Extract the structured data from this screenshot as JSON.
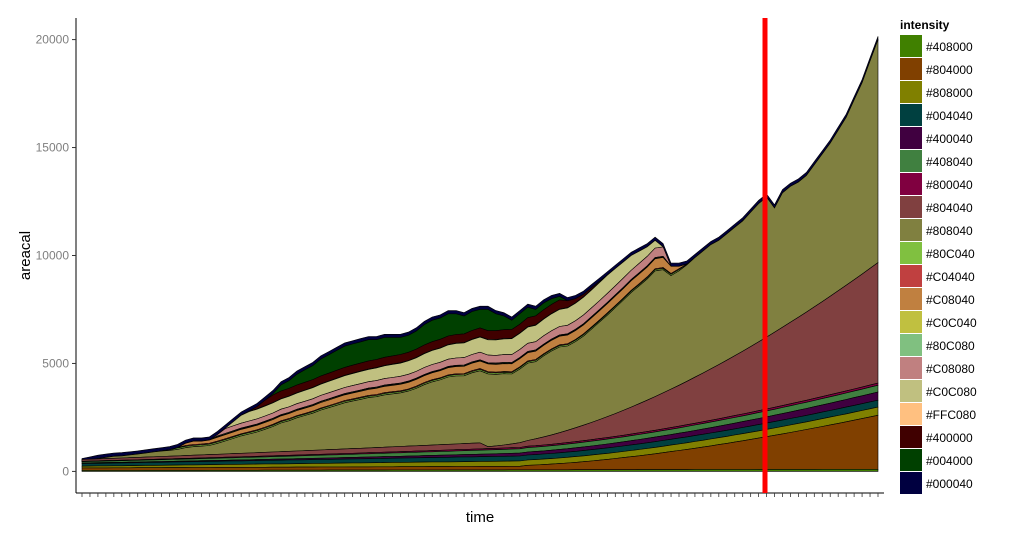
{
  "chart_data": {
    "type": "area",
    "stacked": true,
    "xlabel": "time",
    "ylabel": "areacal",
    "ylim": [
      -1000,
      21000
    ],
    "yticks": [
      0,
      5000,
      10000,
      15000,
      20000
    ],
    "ytick_labels": [
      "0",
      "5000",
      "10000",
      "15000",
      "20000"
    ],
    "n_time_points": 101,
    "grid": false,
    "legend": {
      "title": "intensity",
      "placement": "right",
      "entries": [
        "#408000",
        "#804000",
        "#808000",
        "#004040",
        "#400040",
        "#408040",
        "#800040",
        "#804040",
        "#808040",
        "#80C040",
        "#C04040",
        "#C08040",
        "#C0C040",
        "#80C080",
        "#C08080",
        "#C0C080",
        "#FFC080",
        "#400000",
        "#004000",
        "#000040"
      ]
    },
    "series": [
      {
        "name": "#000040",
        "color": "#000040",
        "values": [
          30,
          35,
          40,
          45,
          45,
          50,
          50,
          55,
          55,
          60,
          60,
          60,
          60,
          60,
          60,
          60,
          60,
          60,
          60,
          60,
          60,
          60,
          60,
          60,
          60,
          60,
          60,
          60,
          60,
          60,
          60,
          60,
          60,
          60,
          60,
          60,
          60,
          60,
          60,
          60,
          60,
          60,
          60,
          60,
          60,
          60,
          60,
          60,
          60,
          60,
          60,
          60,
          60,
          60,
          60,
          60,
          60,
          60,
          60,
          60,
          60,
          60,
          60,
          60,
          60,
          60,
          60,
          60,
          60,
          60,
          60,
          60,
          60,
          60,
          60,
          60,
          60,
          60,
          60,
          60,
          60,
          60,
          60,
          60,
          60,
          60,
          60,
          60,
          60,
          60,
          60,
          60,
          60,
          60,
          60,
          60,
          60,
          60,
          60,
          60,
          60
        ]
      },
      {
        "name": "#004000",
        "color": "#004000",
        "values": [
          0,
          0,
          0,
          0,
          0,
          0,
          0,
          0,
          0,
          0,
          0,
          0,
          0,
          0,
          0,
          0,
          0,
          0,
          0,
          0,
          0,
          0,
          0,
          0,
          0,
          0,
          0,
          0,
          0,
          0,
          0,
          0,
          0,
          0,
          0,
          0,
          0,
          0,
          0,
          0,
          0,
          0,
          0,
          0,
          0,
          0,
          0,
          0,
          0,
          0,
          0,
          0,
          0,
          0,
          0,
          0,
          0,
          0,
          0,
          0,
          0,
          0,
          0,
          0,
          0,
          0,
          0,
          0,
          0,
          0,
          0,
          0,
          0,
          0,
          0,
          0,
          0,
          0,
          0,
          0,
          0,
          0,
          0,
          0,
          0,
          0,
          0,
          0,
          0,
          0,
          0,
          0,
          0,
          0,
          0,
          0,
          0,
          0,
          0,
          0,
          0
        ]
      },
      {
        "name": "#400000",
        "color": "#400000",
        "values": [
          0,
          0,
          0,
          0,
          0,
          0,
          0,
          0,
          0,
          0,
          0,
          0,
          0,
          0,
          0,
          0,
          0,
          0,
          0,
          0,
          0,
          0,
          0,
          0,
          0,
          0,
          0,
          0,
          0,
          0,
          0,
          0,
          0,
          0,
          0,
          0,
          0,
          0,
          0,
          0,
          0,
          0,
          0,
          0,
          0,
          0,
          0,
          0,
          0,
          0,
          0,
          0,
          0,
          0,
          0,
          0,
          0,
          0,
          0,
          0,
          0,
          0,
          0,
          0,
          0,
          0,
          0,
          0,
          0,
          0,
          0,
          0,
          0,
          0,
          0,
          0,
          0,
          0,
          0,
          0,
          0,
          0,
          0,
          0,
          0,
          0,
          0,
          0,
          0,
          0,
          0,
          0,
          0,
          0,
          0,
          0,
          0,
          0,
          0,
          0,
          0
        ]
      },
      {
        "name": "#FFC080",
        "color": "#FFC080",
        "values": [
          0,
          0,
          0,
          0,
          0,
          0,
          0,
          0,
          0,
          0,
          0,
          0,
          0,
          0,
          0,
          0,
          0,
          0,
          0,
          0,
          0,
          0,
          0,
          0,
          0,
          0,
          0,
          0,
          0,
          0,
          0,
          0,
          0,
          0,
          0,
          0,
          0,
          0,
          0,
          0,
          0,
          0,
          0,
          0,
          0,
          0,
          0,
          0,
          0,
          0,
          0,
          0,
          0,
          0,
          0,
          0,
          0,
          0,
          0,
          0,
          0,
          0,
          0,
          0,
          0,
          0,
          0,
          0,
          0,
          0,
          0,
          0,
          0,
          0,
          0,
          0,
          0,
          0,
          0,
          0,
          0,
          0,
          0,
          0,
          0,
          0,
          0,
          0,
          0,
          0,
          0,
          0,
          0,
          0,
          0,
          0,
          0,
          0,
          0,
          0,
          0
        ]
      },
      {
        "name": "#C0C080",
        "color": "#C0C080",
        "values": [
          0,
          0,
          0,
          0,
          0,
          0,
          0,
          0,
          0,
          0,
          0,
          0,
          0,
          0,
          0,
          0,
          0,
          0,
          0,
          0,
          0,
          0,
          0,
          0,
          0,
          0,
          0,
          0,
          0,
          0,
          0,
          0,
          0,
          0,
          0,
          0,
          0,
          0,
          0,
          0,
          0,
          0,
          0,
          0,
          0,
          0,
          0,
          0,
          0,
          0,
          0,
          0,
          0,
          0,
          0,
          0,
          0,
          0,
          0,
          0,
          0,
          0,
          0,
          0,
          0,
          0,
          0,
          0,
          0,
          0,
          0,
          0,
          0,
          0,
          0,
          0,
          0,
          0,
          0,
          0,
          0,
          0,
          0,
          0,
          0,
          0,
          0,
          0,
          0,
          0,
          0,
          0,
          0,
          0,
          0,
          0,
          0,
          0,
          0,
          0,
          0
        ]
      },
      {
        "name": "#C08080",
        "color": "#C08080",
        "values": [
          0,
          0,
          0,
          0,
          0,
          0,
          0,
          0,
          0,
          0,
          0,
          0,
          0,
          0,
          0,
          0,
          0,
          0,
          0,
          0,
          0,
          0,
          0,
          0,
          0,
          0,
          0,
          0,
          0,
          0,
          0,
          0,
          0,
          0,
          0,
          0,
          0,
          0,
          0,
          0,
          0,
          0,
          0,
          0,
          0,
          0,
          0,
          0,
          0,
          0,
          0,
          0,
          0,
          0,
          0,
          0,
          0,
          0,
          0,
          0,
          0,
          0,
          0,
          0,
          0,
          0,
          0,
          0,
          0,
          0,
          0,
          0,
          0,
          0,
          0,
          0,
          0,
          0,
          0,
          0,
          0,
          0,
          0,
          0,
          0,
          0,
          0,
          0,
          0,
          0,
          0,
          0,
          0,
          0,
          0,
          0,
          0,
          0,
          0,
          0,
          0
        ]
      }
    ]
  }
}
